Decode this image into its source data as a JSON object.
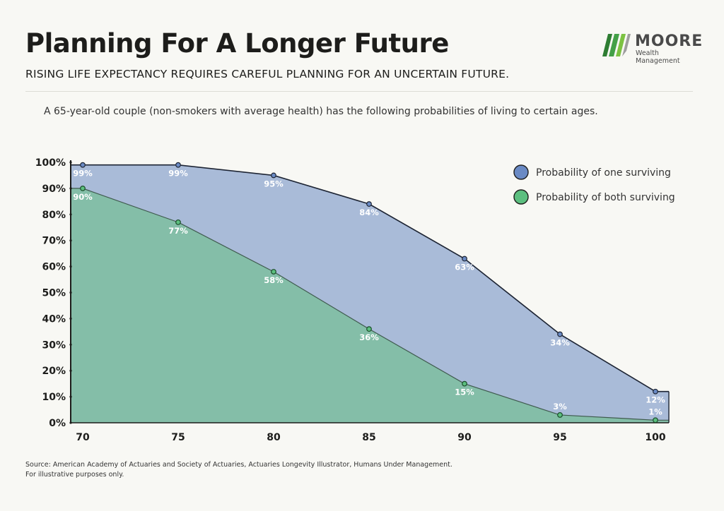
{
  "header": {
    "title": "Planning For A Longer Future",
    "subtitle": "RISING LIFE EXPECTANCY REQUIRES CAREFUL PLANNING FOR AN UNCERTAIN FUTURE.",
    "description": "A 65-year-old couple (non-smokers with average health) has the following probabilities of living to certain ages."
  },
  "logo": {
    "name": "MOORE",
    "tagline": "Wealth Management"
  },
  "footer": {
    "source": "Source: American Academy of Actuaries and Society of Actuaries, Actuaries Longevity Illustrator, Humans Under Management.",
    "note": "For illustrative purposes only."
  },
  "chart_data": {
    "type": "area",
    "x": [
      70,
      75,
      80,
      85,
      90,
      95,
      100
    ],
    "xlim": [
      70,
      100
    ],
    "ylim": [
      0,
      100
    ],
    "y_ticks": [
      "0%",
      "10%",
      "20%",
      "30%",
      "40%",
      "50%",
      "60%",
      "70%",
      "80%",
      "90%",
      "100%"
    ],
    "x_ticks": [
      "70",
      "75",
      "80",
      "85",
      "90",
      "95",
      "100"
    ],
    "legend_position": "top-right",
    "grid": false,
    "series": [
      {
        "name": "Probability of one surviving",
        "values": [
          99,
          99,
          95,
          84,
          63,
          34,
          12
        ],
        "labels": [
          "99%",
          "99%",
          "95%",
          "84%",
          "63%",
          "34%",
          "12%"
        ],
        "color": "#a9bbd8",
        "marker": "#6a8ac4"
      },
      {
        "name": "Probability of both surviving",
        "values": [
          90,
          77,
          58,
          36,
          15,
          3,
          1
        ],
        "labels": [
          "90%",
          "77%",
          "58%",
          "36%",
          "15%",
          "3%",
          "1%"
        ],
        "color": "#84bea8",
        "marker": "#5cbf7f"
      }
    ]
  }
}
